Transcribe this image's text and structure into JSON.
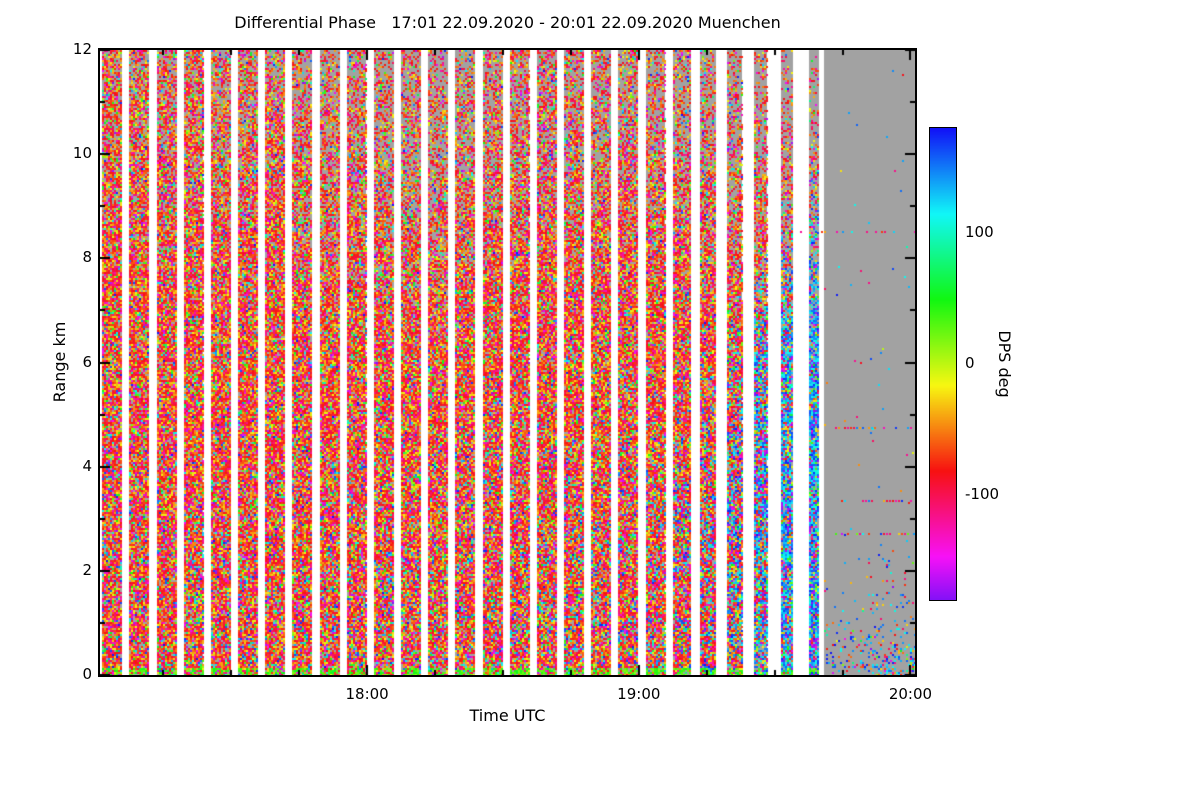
{
  "chart_data": {
    "type": "heatmap",
    "title": "Differential Phase   17:01 22.09.2020 - 20:01 22.09.2020 Muenchen",
    "xlabel": "Time UTC",
    "ylabel": "Range km",
    "x_start": "17:01",
    "x_end": "20:01",
    "y_range_km": [
      0,
      12
    ],
    "x_ticks": [
      {
        "label": "18:00",
        "minute": 60
      },
      {
        "label": "19:00",
        "minute": 120
      },
      {
        "label": "20:00",
        "minute": 180
      }
    ],
    "x_minor_tick_minutes": [
      15,
      30,
      45,
      75,
      90,
      105,
      135,
      150,
      165
    ],
    "y_ticks": [
      {
        "label": "0",
        "km": 0
      },
      {
        "label": "2",
        "km": 2
      },
      {
        "label": "4",
        "km": 4
      },
      {
        "label": "6",
        "km": 6
      },
      {
        "label": "8",
        "km": 8
      },
      {
        "label": "10",
        "km": 10
      },
      {
        "label": "12",
        "km": 12
      }
    ],
    "y_minor_tick_km": [
      1,
      3,
      5,
      7,
      9,
      11
    ],
    "colorbar": {
      "label": "DPS deg",
      "range": [
        -180,
        180
      ],
      "ticks": [
        {
          "label": "100",
          "value": 100
        },
        {
          "label": "0",
          "value": 0
        },
        {
          "label": "-100",
          "value": -100
        }
      ]
    },
    "colors": {
      "no_data_background": "#ffffff",
      "no_signal_gray": "#a2a2a2",
      "frame": "#000000"
    },
    "description": "Vertical scan columns of random differential-phase noise (warm orange/red/yellow dominated with rainbow speckle) separated by white data gaps; gray = no signal. Columns after 19:20 narrow and turn blue/cyan at low range; after ~19:45 solid gray with sparse blue/orange speckle below 2 km and dotted horizontal echo lines.",
    "bands": [
      {
        "start_min": 1.5,
        "width_min": 4.4,
        "blue_frac": 0.04,
        "blue_km": 2,
        "gray_top": 0.25,
        "fade_km": 8
      },
      {
        "start_min": 7.5,
        "width_min": 4.3,
        "blue_frac": 0.04,
        "blue_km": 2,
        "gray_top": 0.3,
        "fade_km": 8
      },
      {
        "start_min": 13.5,
        "width_min": 4.4,
        "blue_frac": 0.05,
        "blue_km": 2,
        "gray_top": 0.35,
        "fade_km": 7.5
      },
      {
        "start_min": 19.5,
        "width_min": 4.3,
        "blue_frac": 0.05,
        "blue_km": 2,
        "gray_top": 0.3,
        "fade_km": 8
      },
      {
        "start_min": 25.5,
        "width_min": 4.4,
        "blue_frac": 0.05,
        "blue_km": 2,
        "gray_top": 0.4,
        "fade_km": 7.5
      },
      {
        "start_min": 31.5,
        "width_min": 4.3,
        "blue_frac": 0.05,
        "blue_km": 2,
        "gray_top": 0.35,
        "fade_km": 7.5
      },
      {
        "start_min": 37.5,
        "width_min": 4.4,
        "blue_frac": 0.06,
        "blue_km": 2,
        "gray_top": 0.3,
        "fade_km": 8
      },
      {
        "start_min": 43.5,
        "width_min": 4.3,
        "blue_frac": 0.06,
        "blue_km": 2,
        "gray_top": 0.45,
        "fade_km": 7
      },
      {
        "start_min": 49.5,
        "width_min": 4.4,
        "blue_frac": 0.06,
        "blue_km": 2,
        "gray_top": 0.5,
        "fade_km": 6.5
      },
      {
        "start_min": 55.5,
        "width_min": 4.3,
        "blue_frac": 0.06,
        "blue_km": 2,
        "gray_top": 0.45,
        "fade_km": 7
      },
      {
        "start_min": 61.5,
        "width_min": 4.4,
        "blue_frac": 0.07,
        "blue_km": 2,
        "gray_top": 0.5,
        "fade_km": 6.5
      },
      {
        "start_min": 67.5,
        "width_min": 4.3,
        "blue_frac": 0.07,
        "blue_km": 2,
        "gray_top": 0.55,
        "fade_km": 6
      },
      {
        "start_min": 73.5,
        "width_min": 4.4,
        "blue_frac": 0.07,
        "blue_km": 2,
        "gray_top": 0.6,
        "fade_km": 6
      },
      {
        "start_min": 79.5,
        "width_min": 4.3,
        "blue_frac": 0.07,
        "blue_km": 2,
        "gray_top": 0.55,
        "fade_km": 6.5
      },
      {
        "start_min": 85.5,
        "width_min": 4.4,
        "blue_frac": 0.08,
        "blue_km": 2,
        "gray_top": 0.5,
        "fade_km": 7
      },
      {
        "start_min": 91.5,
        "width_min": 4.3,
        "blue_frac": 0.08,
        "blue_km": 2,
        "gray_top": 0.45,
        "fade_km": 7
      },
      {
        "start_min": 97.5,
        "width_min": 4.4,
        "blue_frac": 0.08,
        "blue_km": 2.5,
        "gray_top": 0.4,
        "fade_km": 7.5
      },
      {
        "start_min": 103.5,
        "width_min": 4.3,
        "blue_frac": 0.09,
        "blue_km": 2.5,
        "gray_top": 0.45,
        "fade_km": 7
      },
      {
        "start_min": 109.5,
        "width_min": 4.4,
        "blue_frac": 0.1,
        "blue_km": 2.5,
        "gray_top": 0.5,
        "fade_km": 7
      },
      {
        "start_min": 115.5,
        "width_min": 4.3,
        "blue_frac": 0.1,
        "blue_km": 2.5,
        "gray_top": 0.45,
        "fade_km": 7
      },
      {
        "start_min": 121.5,
        "width_min": 4.2,
        "blue_frac": 0.12,
        "blue_km": 3,
        "gray_top": 0.5,
        "fade_km": 7
      },
      {
        "start_min": 127.5,
        "width_min": 4.0,
        "blue_frac": 0.15,
        "blue_km": 3,
        "gray_top": 0.5,
        "fade_km": 7
      },
      {
        "start_min": 133.5,
        "width_min": 3.6,
        "blue_frac": 0.2,
        "blue_km": 3.5,
        "gray_top": 0.55,
        "fade_km": 6.5
      },
      {
        "start_min": 139.5,
        "width_min": 3.2,
        "blue_frac": 0.32,
        "blue_km": 4.5,
        "gray_top": 0.6,
        "fade_km": 6.5
      },
      {
        "start_min": 145.5,
        "width_min": 2.8,
        "blue_frac": 0.48,
        "blue_km": 5.5,
        "gray_top": 0.65,
        "fade_km": 6
      },
      {
        "start_min": 151.5,
        "width_min": 2.5,
        "blue_frac": 0.6,
        "blue_km": 6.5,
        "gray_top": 0.7,
        "fade_km": 6
      },
      {
        "start_min": 157.5,
        "width_min": 2.3,
        "blue_frac": 0.7,
        "blue_km": 7,
        "gray_top": 0.8,
        "fade_km": 5.5
      }
    ],
    "gray_zone": {
      "start_min": 161,
      "end_min": 181,
      "dotted_lines": [
        {
          "km": 8.5,
          "start_min": 153,
          "blue_bias": 0.6
        },
        {
          "km": 4.75,
          "start_min": 162,
          "blue_bias": 0.3
        },
        {
          "km": 3.35,
          "start_min": 162,
          "blue_bias": 0.3
        },
        {
          "km": 2.7,
          "start_min": 162,
          "blue_bias": 0.25
        }
      ]
    }
  }
}
